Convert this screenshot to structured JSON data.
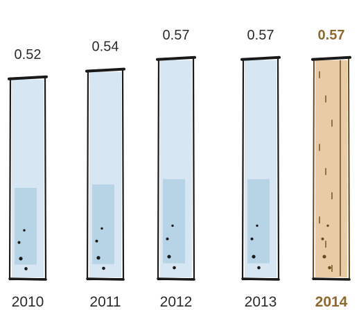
{
  "chart_data": {
    "type": "bar",
    "categories": [
      "2010",
      "2011",
      "2012",
      "2013",
      "2014"
    ],
    "values": [
      0.52,
      0.54,
      0.57,
      0.57,
      0.57
    ],
    "value_labels": [
      "0.52",
      "0.54",
      "0.57",
      "0.57",
      "0.57"
    ],
    "highlight_index": 4,
    "colors": {
      "bar_fill": "#cfe2f0",
      "bar_fill_dark": "#9ec4df",
      "highlight_fill": "#e8c9a0",
      "highlight_stroke": "#6b4a1e",
      "outline": "#1a1a1a",
      "highlight_text": "#8a6a2e"
    }
  }
}
